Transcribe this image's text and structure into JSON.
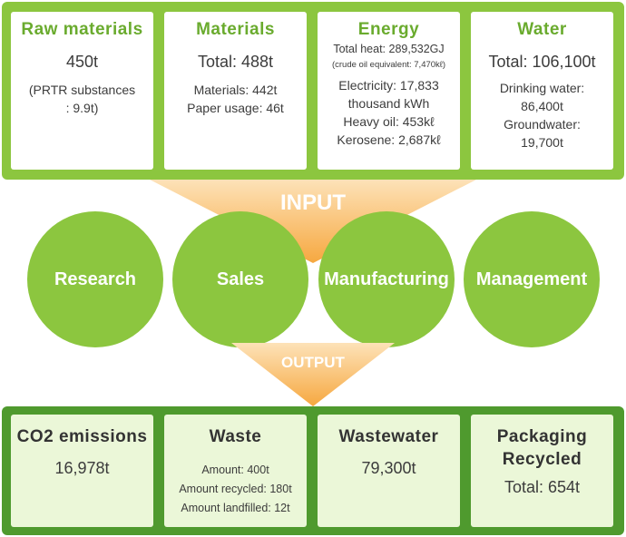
{
  "input_label": "INPUT",
  "output_label": "OUTPUT",
  "inputs": {
    "raw_materials": {
      "title": "Raw materials",
      "value": "450t",
      "note1": "(PRTR substances",
      "note2": ": 9.9t)"
    },
    "materials": {
      "title": "Materials",
      "value": "Total: 488t",
      "line1": "Materials: 442t",
      "line2": "Paper usage: 46t"
    },
    "energy": {
      "title": "Energy",
      "total_heat": "Total heat: 289,532GJ",
      "crude_equiv": "(crude oil equivalent: 7,470kℓ)",
      "elec1": "Electricity: 17,833",
      "elec2": "thousand kWh",
      "heavy_oil": "Heavy oil: 453kℓ",
      "kerosene": "Kerosene: 2,687kℓ"
    },
    "water": {
      "title": "Water",
      "value": "Total: 106,100t",
      "line1": "Drinking water:",
      "line2": "86,400t",
      "line3": "Groundwater:",
      "line4": "19,700t"
    }
  },
  "activities": [
    "Research",
    "Sales",
    "Manufacturing",
    "Management"
  ],
  "outputs": {
    "co2": {
      "title": "CO2 emissions",
      "value": "16,978t"
    },
    "waste": {
      "title": "Waste",
      "line1": "Amount: 400t",
      "line2": "Amount recycled: 180t",
      "line3": "Amount landfilled: 12t"
    },
    "wastewater": {
      "title": "Wastewater",
      "value": "79,300t"
    },
    "packaging": {
      "title1": "Packaging",
      "title2": "Recycled",
      "value": "Total: 654t"
    }
  },
  "colors": {
    "input_band": "#8cc63f",
    "output_band": "#4f9a2e",
    "circle": "#8cc63f",
    "title_green": "#6aab2e",
    "funnel": "#f6b455"
  }
}
